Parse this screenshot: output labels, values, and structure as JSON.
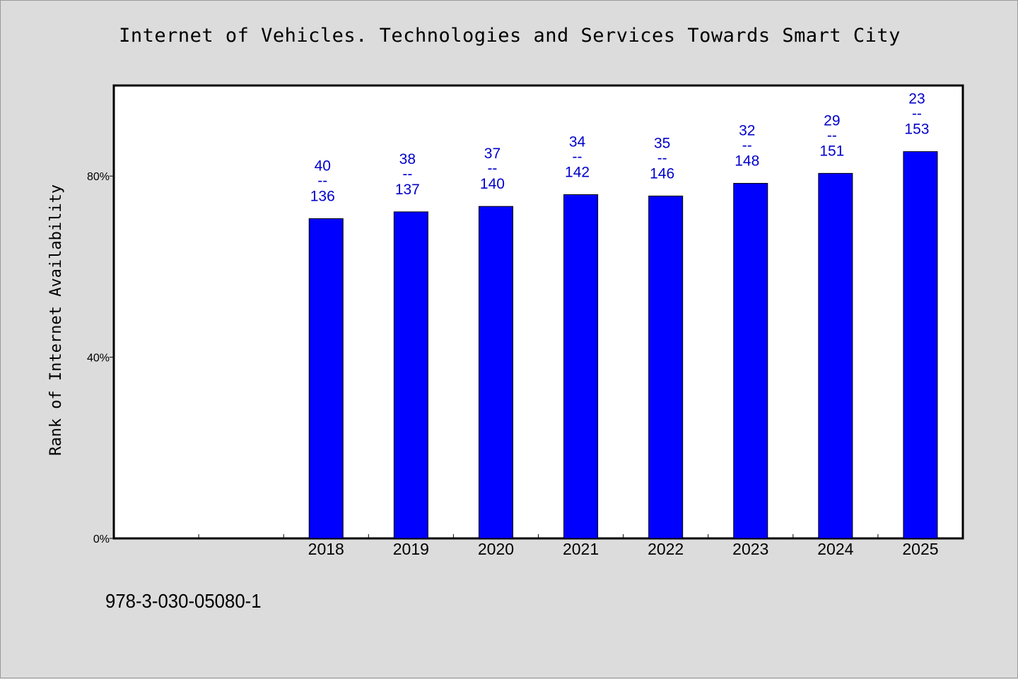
{
  "chart_data": {
    "type": "bar",
    "title": "Internet of Vehicles. Technologies and Services Towards Smart City",
    "xlabel": "",
    "ylabel": "Rank of Internet Availability",
    "ylim": [
      0,
      100
    ],
    "yticks": [
      {
        "value": 0,
        "label": "0%"
      },
      {
        "value": 40,
        "label": "40%"
      },
      {
        "value": 80,
        "label": "80%"
      }
    ],
    "x_slots": 10,
    "categories": [
      "2018",
      "2019",
      "2020",
      "2021",
      "2022",
      "2023",
      "2024",
      "2025"
    ],
    "category_slots": [
      2,
      3,
      4,
      5,
      6,
      7,
      8,
      9
    ],
    "values": [
      70.6,
      72.1,
      73.3,
      75.9,
      75.6,
      78.4,
      80.6,
      85.4
    ],
    "bar_labels": [
      {
        "rank": "40",
        "sep": "--",
        "total": "136"
      },
      {
        "rank": "38",
        "sep": "--",
        "total": "137"
      },
      {
        "rank": "37",
        "sep": "--",
        "total": "140"
      },
      {
        "rank": "34",
        "sep": "--",
        "total": "142"
      },
      {
        "rank": "35",
        "sep": "--",
        "total": "146"
      },
      {
        "rank": "32",
        "sep": "--",
        "total": "148"
      },
      {
        "rank": "29",
        "sep": "--",
        "total": "151"
      },
      {
        "rank": "23",
        "sep": "--",
        "total": "153"
      }
    ],
    "bar_color": "#0000ff",
    "label_color": "#0000cc",
    "grid": false,
    "legend": "none"
  },
  "footnote": "978-3-030-05080-1",
  "colors": {
    "background": "#dcdcdc",
    "plot_background": "#ffffff"
  }
}
